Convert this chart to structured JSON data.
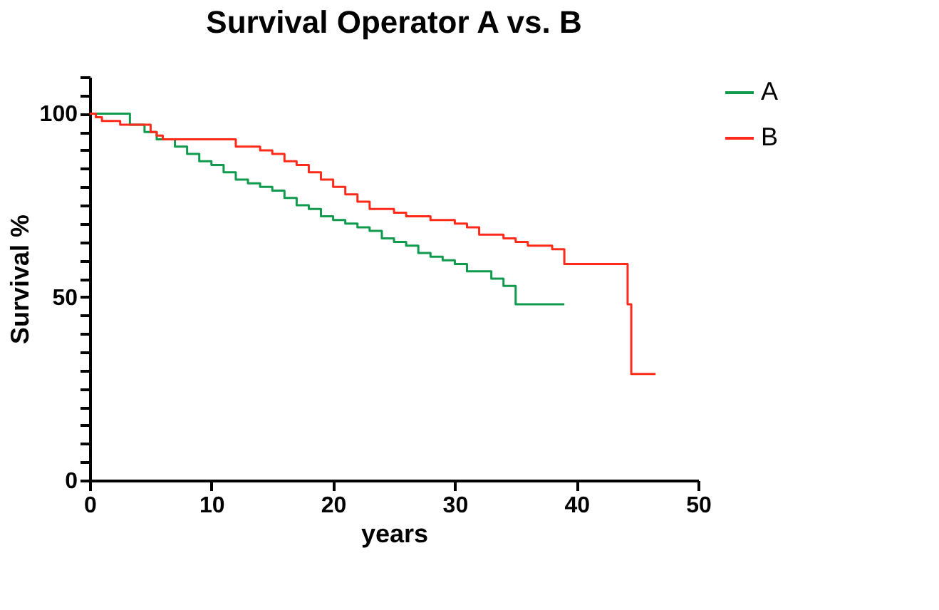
{
  "chart_data": {
    "type": "step",
    "title": "Survival Operator A vs. B",
    "xlabel": "years",
    "ylabel": "Survival %",
    "xlim": [
      0,
      50
    ],
    "xticks": [
      0,
      10,
      20,
      30,
      40,
      50
    ],
    "ylim": [
      0,
      110
    ],
    "yticks": [
      0,
      {
        "value": 5,
        "label": null
      },
      {
        "value": 10,
        "label": null
      },
      {
        "value": 15,
        "label": null
      },
      {
        "value": 20,
        "label": null
      },
      {
        "value": 25,
        "label": null
      },
      {
        "value": 30,
        "label": null
      },
      {
        "value": 35,
        "label": null
      },
      {
        "value": 40,
        "label": null
      },
      {
        "value": 45,
        "label": null
      },
      50,
      {
        "value": 55,
        "label": null
      },
      {
        "value": 60,
        "label": null
      },
      {
        "value": 65,
        "label": null
      },
      {
        "value": 70,
        "label": null
      },
      {
        "value": 75,
        "label": null
      },
      {
        "value": 80,
        "label": null
      },
      {
        "value": 85,
        "label": null
      },
      {
        "value": 90,
        "label": null
      },
      {
        "value": 95,
        "label": null
      },
      100,
      {
        "value": 105,
        "label": null
      },
      {
        "value": 110,
        "label": null
      }
    ],
    "grid": false,
    "legend": "top right",
    "marker": "none",
    "line_style": "solid",
    "series": [
      {
        "name": "A",
        "color": "#109a4e",
        "x": [
          0,
          3.3,
          4.5,
          5.5,
          7,
          8,
          9,
          10,
          11,
          12,
          13,
          14,
          15,
          16,
          17,
          18,
          19,
          20,
          21,
          22,
          23,
          24,
          25,
          26,
          27,
          28,
          29,
          30,
          31,
          33,
          34,
          35,
          39
        ],
        "values": [
          100,
          97,
          95,
          93,
          91,
          89,
          87,
          86,
          84,
          82,
          81,
          80,
          79,
          77,
          75,
          74,
          72,
          71,
          70,
          69,
          68,
          66,
          65,
          64,
          62,
          61,
          60,
          59,
          57,
          55,
          53,
          48,
          48
        ]
      },
      {
        "name": "B",
        "color": "#ff2a1a",
        "x": [
          0,
          0.5,
          1,
          2.5,
          5,
          5.5,
          6,
          10,
          12,
          14,
          15,
          16,
          17,
          18,
          19,
          20,
          21,
          22,
          23,
          25,
          26,
          28,
          30,
          31,
          32,
          34,
          35,
          36,
          38,
          39,
          44,
          44.2,
          44.5,
          46.5
        ],
        "values": [
          100,
          99,
          98,
          97,
          95,
          94,
          93,
          93,
          91,
          90,
          89,
          87,
          86,
          84,
          82,
          80,
          78,
          76,
          74,
          73,
          72,
          71,
          70,
          69,
          67,
          66,
          65,
          64,
          63,
          59,
          59,
          48,
          29,
          29
        ]
      }
    ]
  }
}
